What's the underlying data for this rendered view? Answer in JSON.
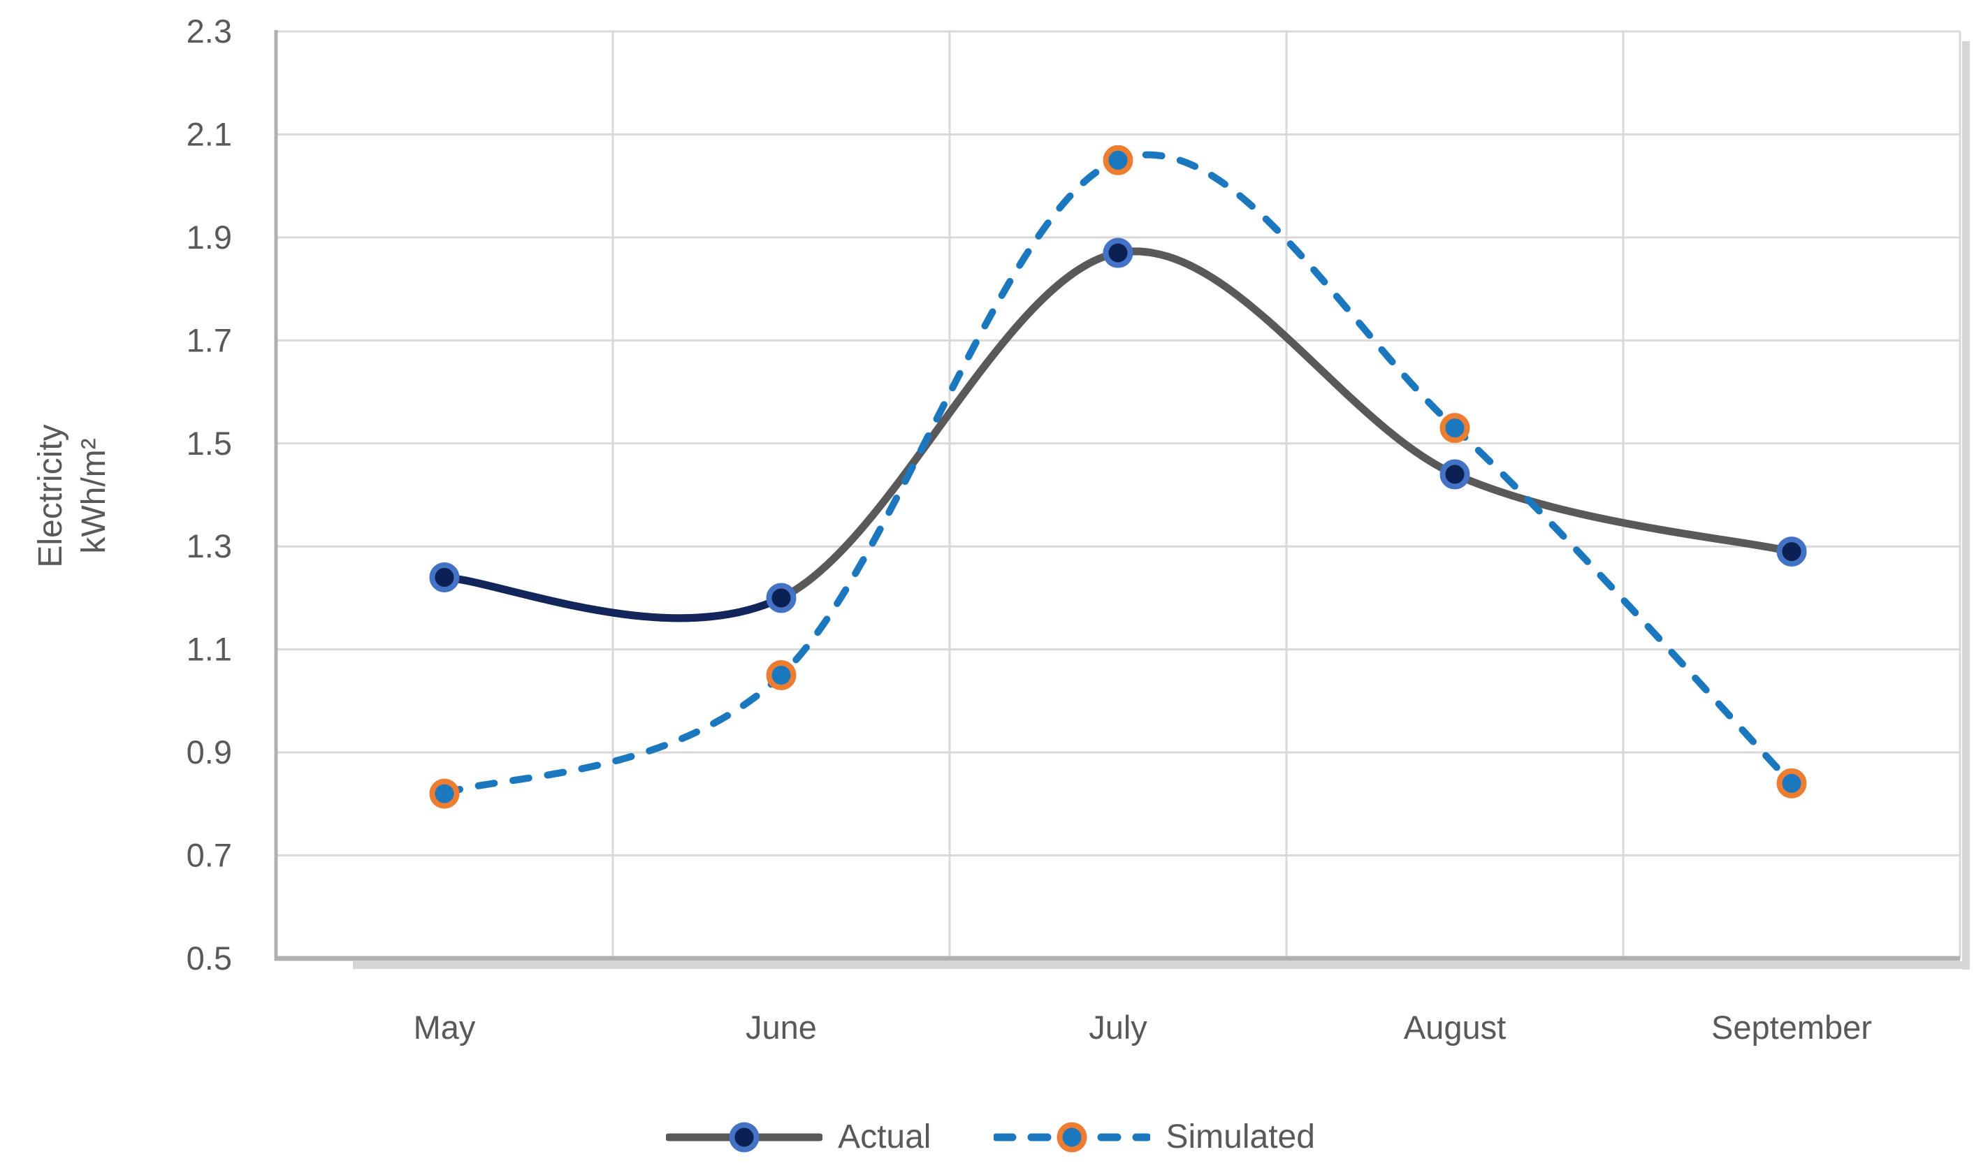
{
  "chart_data": {
    "type": "line",
    "title": "",
    "categories": [
      "May",
      "June",
      "July",
      "August",
      "September"
    ],
    "series": [
      {
        "name": "Actual",
        "values": [
          1.24,
          1.2,
          1.87,
          1.44,
          1.29
        ],
        "line_style": "solid",
        "smooth": true,
        "line_color": "#595959",
        "first_segment_color": "#13265B",
        "marker_fill": "#0B2153",
        "marker_ring": "#4472C4"
      },
      {
        "name": "Simulated",
        "values": [
          0.82,
          1.05,
          2.05,
          1.53,
          0.84
        ],
        "line_style": "dashed",
        "smooth": true,
        "line_color": "#1B78BF",
        "marker_fill": "#1B78BF",
        "marker_ring": "#ED7D31"
      }
    ],
    "ylabel_line1": "Electricity",
    "ylabel_line2": "kWh/m²",
    "yticks": [
      "2.3",
      "2.1",
      "1.9",
      "1.7",
      "1.5",
      "1.3",
      "1.1",
      "0.9",
      "0.7",
      "0.5"
    ],
    "ylim": [
      0.5,
      2.3
    ],
    "ytick_step": 0.2,
    "grid": true,
    "legend_position": "bottom"
  },
  "colors": {
    "background": "#FFFFFF",
    "gridline": "#D9D9D9",
    "axis_line": "#B0B0B0",
    "shadow": "#D6D6D6",
    "text": "#595959",
    "actual_line": "#595959",
    "actual_first_segment": "#13265B",
    "actual_marker_fill": "#0B2153",
    "actual_marker_ring": "#4472C4",
    "simulated_line": "#1B78BF",
    "simulated_marker_ring": "#ED7D31"
  }
}
